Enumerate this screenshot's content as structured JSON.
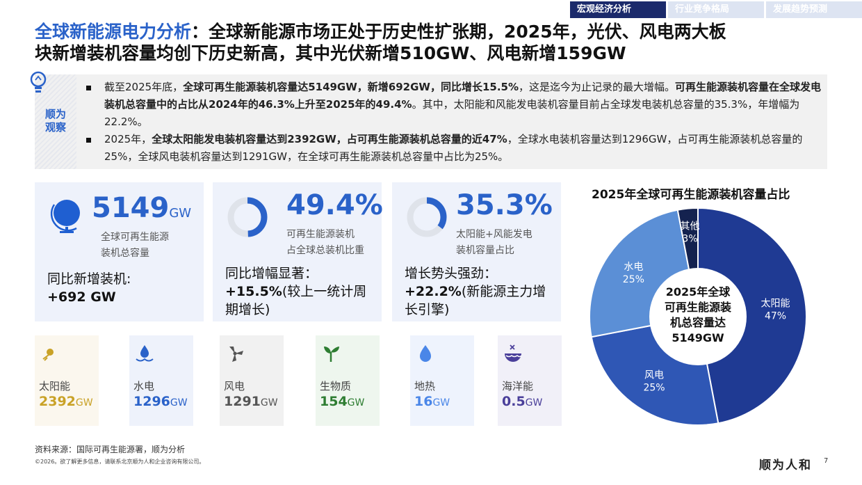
{
  "tabs": [
    "宏观经济分析",
    "行业竞争格局",
    "发展趋势预测"
  ],
  "title": {
    "highlight": "全球新能源电力分析",
    "rest_line1": "：全球新能源市场正处于历史性扩张期，2025年，光伏、风电两大板",
    "line2": "块新增装机容量均创下历史新高，其中光伏新增510GW、风电新增159GW"
  },
  "observation": {
    "label": "顺为观察",
    "b1": {
      "p1": "截至2025年底，",
      "b1": "全球可再生能源装机容量达5149GW，新增692GW，同比增长15.5%",
      "p2": "，这是迄今为止记录的最大增幅。",
      "b2": "可再生能源装机容量在全球发电装机总容量中的占比从2024年的46.3%上升至2025年的49.4%",
      "p3": "。其中，太阳能和风能发电装机容量目前占全球发电装机总容量的35.3%，年增幅为22.2%。"
    },
    "b2": {
      "p1": "2025年，",
      "b1": "全球太阳能发电装机容量达到2392GW，占可再生能源装机总容量的近47%",
      "p2": "，全球水电装机容量达到1296GW，占可再生能源装机总容量的25%，全球风电装机容量达到1291GW，在全球可再生能源装机总容量中占比为25%。"
    }
  },
  "cards": [
    {
      "big": "5149",
      "unit": "GW",
      "sub1": "全球可再生能源",
      "sub2": "装机总容量",
      "desc1": "同比新增装机:",
      "desc2": "+692 GW"
    },
    {
      "big": "49.4%",
      "ring": 0.494,
      "sub1": "可再生能源装机",
      "sub2": "占全球总装机比重",
      "desc1": "同比增幅显著：",
      "desc2b": "+15.5%",
      "desc2": "(较上一统计周",
      "desc3": "期增长)"
    },
    {
      "big": "35.3%",
      "ring": 0.353,
      "sub1": "太阳能+风能发电",
      "sub2": "装机容量占比",
      "desc1": "增长势头强劲：",
      "desc2b": "+22.2%",
      "desc2": "(新能源主力增",
      "desc3": "长引擎)"
    }
  ],
  "tiles": [
    {
      "label": "太阳能",
      "value": "2392",
      "unit": "GW",
      "color": "#c9a227",
      "bg": "#fbf7ee",
      "icon": "sun-icon"
    },
    {
      "label": "水电",
      "value": "1296",
      "unit": "GW",
      "color": "#2a62c9",
      "bg": "#eef2fb",
      "icon": "water-icon"
    },
    {
      "label": "风电",
      "value": "1291",
      "unit": "GW",
      "color": "#555555",
      "bg": "#f1f1f1",
      "icon": "wind-icon"
    },
    {
      "label": "生物质",
      "value": "154",
      "unit": "GW",
      "color": "#2e7d32",
      "bg": "#eef6ee",
      "icon": "leaf-icon"
    },
    {
      "label": "地热",
      "value": "16",
      "unit": "GW",
      "color": "#4a86e8",
      "bg": "#eef3fd",
      "icon": "flame-icon"
    },
    {
      "label": "海洋能",
      "value": "0.5",
      "unit": "GW",
      "color": "#4a3f9a",
      "bg": "#f1f0f8",
      "icon": "ocean-icon"
    }
  ],
  "chart_data": {
    "type": "pie",
    "title": "2025年全球可再生能源装机容量占比",
    "center_label": [
      "2025年全球",
      "可再生能源装",
      "机总容量达",
      "5149GW"
    ],
    "slices": [
      {
        "name": "太阳能",
        "value": 47,
        "label": "47%",
        "color": "#1f3a93"
      },
      {
        "name": "风电",
        "value": 25,
        "label": "25%",
        "color": "#2f57b5"
      },
      {
        "name": "水电",
        "value": 25,
        "label": "25%",
        "color": "#5b8fd6"
      },
      {
        "name": "其他",
        "value": 3,
        "label": "3%",
        "color": "#14224f"
      }
    ]
  },
  "source": "资料来源：国际可再生能源署，顺为分析",
  "copyright": "©2026。欲了解更多信息，请联系北京顺为人和企业咨询有限公司。",
  "logo": "顺为人和",
  "page_number": "7"
}
